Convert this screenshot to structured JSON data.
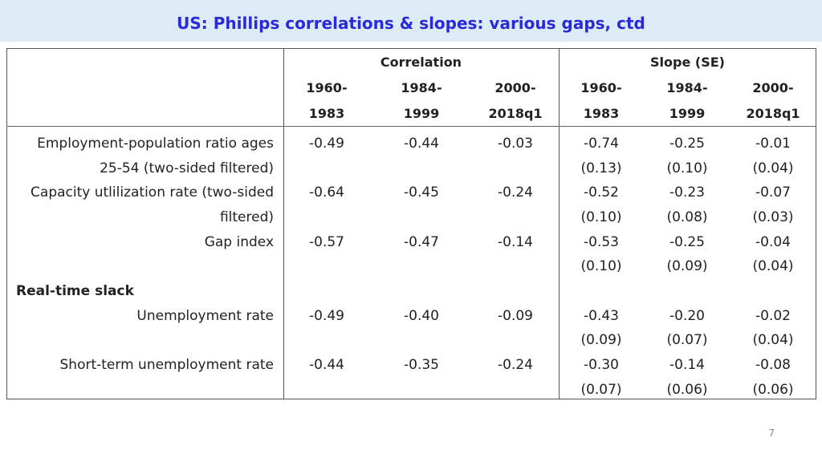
{
  "title": "US: Phillips correlations & slopes: various gaps, ctd",
  "headers": {
    "group_correlation": "Correlation",
    "group_slope": "Slope (SE)",
    "periods_line1": [
      "1960-",
      "1984-",
      "2000-",
      "1960-",
      "1984-",
      "2000-"
    ],
    "periods_line2": [
      "1983",
      "1999",
      "2018q1",
      "1983",
      "1999",
      "2018q1"
    ]
  },
  "rows": [
    {
      "label1": "Employment-population ratio ages",
      "label2": "25-54 (two-sided filtered)",
      "corr": [
        "-0.49",
        "-0.44",
        "-0.03"
      ],
      "slope": [
        "-0.74",
        "-0.25",
        "-0.01"
      ],
      "se": [
        "(0.13)",
        "(0.10)",
        "(0.04)"
      ]
    },
    {
      "label1": "Capacity utlilization rate (two-sided",
      "label2": "filtered)",
      "corr": [
        "-0.64",
        "-0.45",
        "-0.24"
      ],
      "slope": [
        "-0.52",
        "-0.23",
        "-0.07"
      ],
      "se": [
        "(0.10)",
        "(0.08)",
        "(0.03)"
      ]
    },
    {
      "label1": "Gap index",
      "label2": "",
      "corr": [
        "-0.57",
        "-0.47",
        "-0.14"
      ],
      "slope": [
        "-0.53",
        "-0.25",
        "-0.04"
      ],
      "se": [
        "(0.10)",
        "(0.09)",
        "(0.04)"
      ]
    },
    {
      "label1": "Unemployment rate",
      "label2": "",
      "corr": [
        "-0.49",
        "-0.40",
        "-0.09"
      ],
      "slope": [
        "-0.43",
        "-0.20",
        "-0.02"
      ],
      "se": [
        "(0.09)",
        "(0.07)",
        "(0.04)"
      ]
    },
    {
      "label1": "Short-term unemployment rate",
      "label2": "",
      "corr": [
        "-0.44",
        "-0.35",
        "-0.24"
      ],
      "slope": [
        "-0.30",
        "-0.14",
        "-0.08"
      ],
      "se": [
        "(0.07)",
        "(0.06)",
        "(0.06)"
      ]
    }
  ],
  "section_label": "Real-time slack",
  "page_number": "7"
}
